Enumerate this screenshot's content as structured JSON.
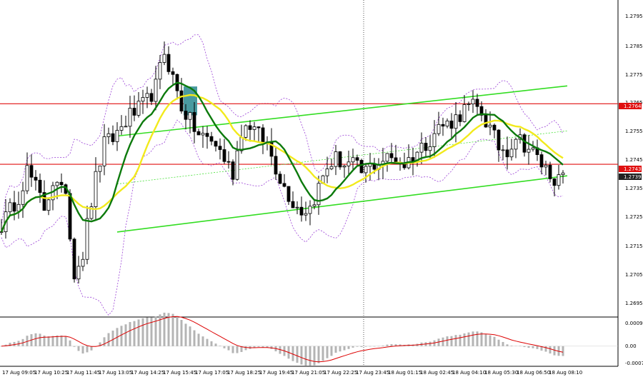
{
  "colors": {
    "background": "#ffffff",
    "candle": "#000000",
    "sma_green": "#0c7a0c",
    "sma_yellow": "#f2ea1c",
    "bollinger": "#9a40d6",
    "channel": "#33dd22",
    "red_level": "#e01010",
    "marker": "#4a9aa0",
    "macd_hist": "#b4b4b4",
    "macd_signal": "#dd0000",
    "badge_price_bg": "#222222",
    "badge_red_bg": "#e01010",
    "badge_text": "#ffffff"
  },
  "chart_data": [
    {
      "type": "candlestick",
      "ylim": [
        1.269,
        1.28
      ],
      "y_ticks": [
        "1.2795",
        "1.2785",
        "1.2775",
        "1.2765",
        "1.2755",
        "1.2745",
        "1.2735",
        "1.2725",
        "1.2715",
        "1.2705",
        "1.2695"
      ],
      "x_ticks": [
        "17 Aug 09:05",
        "17 Aug 10:25",
        "17 Aug 11:45",
        "17 Aug 13:05",
        "17 Aug 14:25",
        "17 Aug 15:45",
        "17 Aug 17:05",
        "17 Aug 18:25",
        "17 Aug 19:45",
        "17 Aug 21:05",
        "17 Aug 22:25",
        "17 Aug 23:45",
        "18 Aug 01:15",
        "18 Aug 02:45",
        "18 Aug 04:10",
        "18 Aug 05:30",
        "18 Aug 06:50",
        "18 Aug 08:10"
      ],
      "close_path": [
        [
          0,
          1.2722
        ],
        [
          4,
          1.2732
        ],
        [
          6,
          1.2741
        ],
        [
          8,
          1.2735
        ],
        [
          10,
          1.2728
        ],
        [
          12,
          1.2737
        ],
        [
          14,
          1.2733
        ],
        [
          15,
          1.2735
        ],
        [
          16,
          1.2718
        ],
        [
          17,
          1.2706
        ],
        [
          19,
          1.2712
        ],
        [
          20,
          1.2722
        ],
        [
          22,
          1.2738
        ],
        [
          24,
          1.275
        ],
        [
          26,
          1.2752
        ],
        [
          28,
          1.2756
        ],
        [
          30,
          1.276
        ],
        [
          32,
          1.2762
        ],
        [
          34,
          1.2765
        ],
        [
          36,
          1.277
        ],
        [
          38,
          1.2782
        ],
        [
          40,
          1.2773
        ],
        [
          42,
          1.2763
        ],
        [
          44,
          1.2758
        ],
        [
          46,
          1.2753
        ],
        [
          48,
          1.2752
        ],
        [
          50,
          1.275
        ],
        [
          52,
          1.2745
        ],
        [
          54,
          1.274
        ],
        [
          56,
          1.2755
        ],
        [
          58,
          1.2757
        ],
        [
          60,
          1.2753
        ],
        [
          62,
          1.275
        ],
        [
          64,
          1.2742
        ],
        [
          66,
          1.2735
        ],
        [
          68,
          1.273
        ],
        [
          70,
          1.2727
        ],
        [
          72,
          1.2728
        ],
        [
          74,
          1.2735
        ],
        [
          76,
          1.2742
        ],
        [
          78,
          1.2745
        ],
        [
          80,
          1.2743
        ],
        [
          82,
          1.2743
        ],
        [
          84,
          1.274
        ],
        [
          86,
          1.2742
        ],
        [
          88,
          1.2744
        ],
        [
          90,
          1.2745
        ],
        [
          92,
          1.2745
        ],
        [
          94,
          1.2743
        ],
        [
          96,
          1.2746
        ],
        [
          98,
          1.2749
        ],
        [
          100,
          1.2752
        ],
        [
          102,
          1.2756
        ],
        [
          104,
          1.2757
        ],
        [
          106,
          1.2759
        ],
        [
          108,
          1.2762
        ],
        [
          110,
          1.2763
        ],
        [
          112,
          1.2761
        ],
        [
          114,
          1.2755
        ],
        [
          116,
          1.2749
        ],
        [
          118,
          1.2748
        ],
        [
          120,
          1.2753
        ],
        [
          122,
          1.275
        ],
        [
          124,
          1.2747
        ],
        [
          126,
          1.2743
        ],
        [
          128,
          1.274
        ],
        [
          130,
          1.2737
        ],
        [
          131,
          1.2739
        ]
      ],
      "candle_count": 132,
      "close_price": "1.2739",
      "level_price": "1.2743",
      "red_level_price": "1.2764",
      "resistance_levels": [
        1.2764,
        1.2743
      ],
      "channel": {
        "upper": [
          [
            27,
            1.27528
          ],
          [
            132,
            1.27702
          ]
        ],
        "lower": [
          [
            27,
            1.27195
          ],
          [
            132,
            1.2739
          ]
        ]
      },
      "signal_marker": {
        "x_candle": 44,
        "y_range": [
          1.276,
          1.277
        ]
      },
      "indicators": [
        "SMA (green)",
        "SMA (yellow)",
        "Bollinger Bands"
      ]
    },
    {
      "type": "macd",
      "ylim": [
        -0.0007,
        0.001
      ],
      "y_ticks": [
        "0.0009",
        "0.00",
        "-0.0007"
      ]
    }
  ]
}
